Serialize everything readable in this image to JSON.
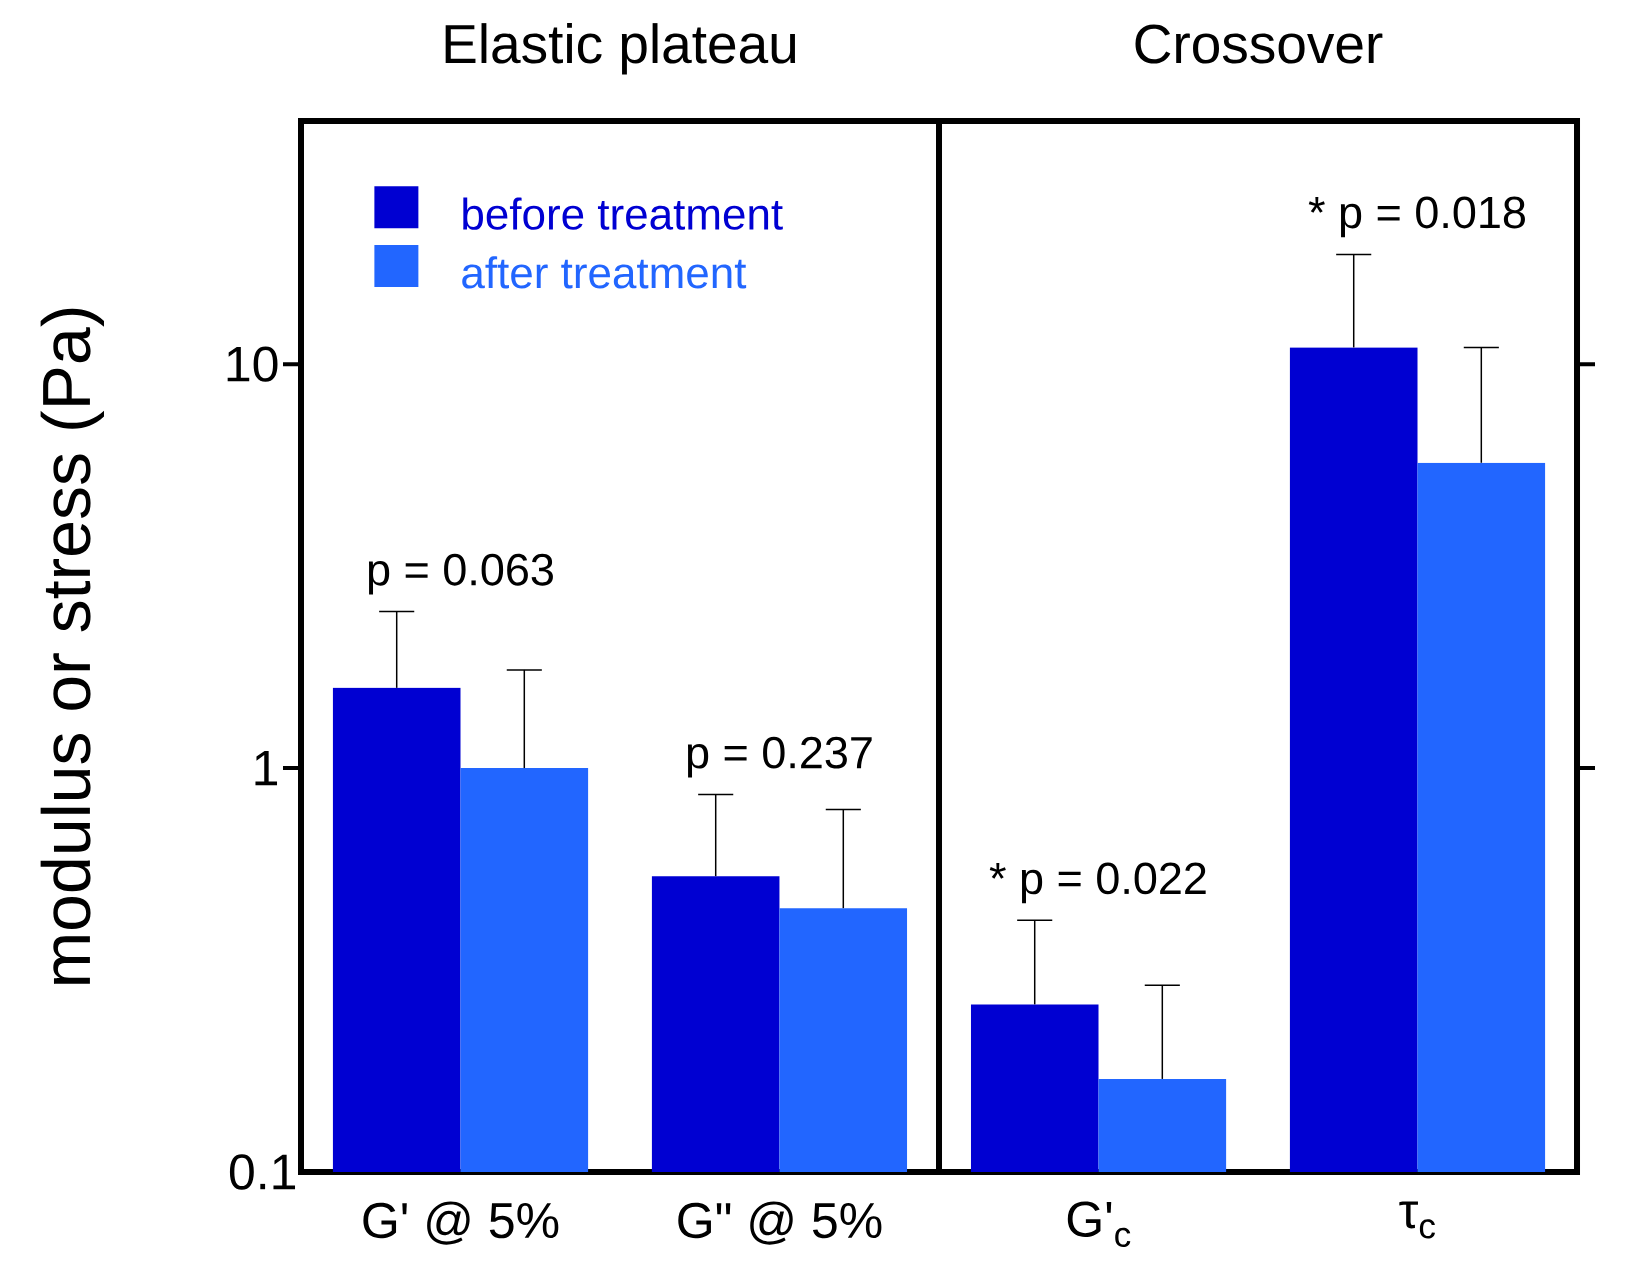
{
  "chart_data": [
    {
      "type": "bar",
      "title": "Elastic plateau",
      "ylabel": "modulus or stress (Pa)",
      "categories": [
        "G' @ 5%",
        "G\" @ 5%"
      ],
      "series": [
        {
          "name": "before treatment",
          "color": "#0000d2",
          "values": [
            1.58,
            0.54
          ],
          "errors": [
            [
              1.58,
              2.44
            ],
            [
              0.54,
              0.86
            ]
          ]
        },
        {
          "name": "after treatment",
          "color": "#2266ff",
          "values": [
            1.0,
            0.45
          ],
          "errors": [
            [
              1.0,
              1.75
            ],
            [
              0.45,
              0.79
            ]
          ]
        }
      ],
      "log": "y",
      "ylim": [
        0.1,
        40
      ],
      "yticks": [
        0.1,
        1,
        10
      ],
      "legend": "top left",
      "annotations": [
        "p = 0.063",
        "p = 0.237"
      ]
    },
    {
      "type": "bar",
      "title": "Crossover",
      "categories": [
        "G'$_{c}$",
        "τ$_{c}$"
      ],
      "series": [
        {
          "color": "#0000d2",
          "values": [
            0.26,
            11.0
          ],
          "errors": [
            [
              0.26,
              0.42
            ],
            [
              11.0,
              18.7
            ]
          ]
        },
        {
          "color": "#2266ff",
          "values": [
            0.17,
            5.7
          ],
          "errors": [
            [
              0.17,
              0.29
            ],
            [
              5.7,
              11.0
            ]
          ]
        }
      ],
      "log": "y",
      "ylim": [
        0.1,
        40
      ],
      "yticks": [
        0.1,
        1,
        10
      ],
      "tick_labels": "x",
      "annotations": [
        "* p = 0.022",
        "* p = 0.018"
      ]
    }
  ]
}
